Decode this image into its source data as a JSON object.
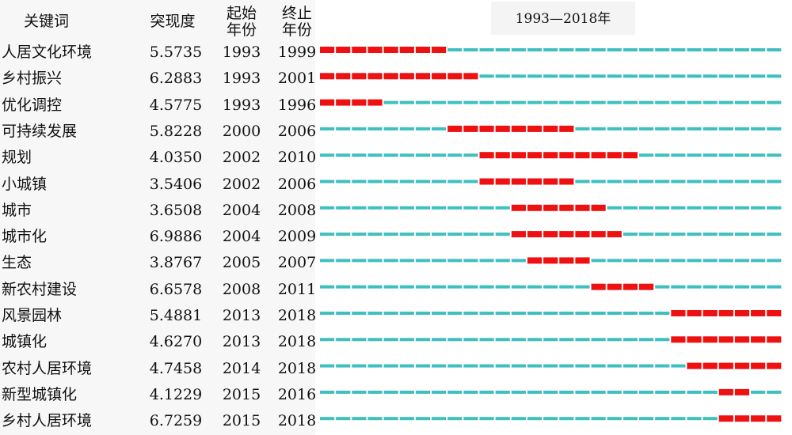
{
  "chart_data": {
    "type": "table",
    "title": "1993—2018年",
    "columns": [
      "关键词",
      "突现度",
      "起始年份",
      "终止年份"
    ],
    "column_header_lines": {
      "begin": [
        "起始",
        "年份"
      ],
      "end": [
        "终止",
        "年份"
      ]
    },
    "range": [
      1993,
      2018
    ],
    "rows": [
      {
        "keyword": "人居文化环境",
        "strength": "5.5735",
        "begin": 1993,
        "end": 1999
      },
      {
        "keyword": "乡村振兴",
        "strength": "6.2883",
        "begin": 1993,
        "end": 2001
      },
      {
        "keyword": "优化调控",
        "strength": "4.5775",
        "begin": 1993,
        "end": 1996
      },
      {
        "keyword": "可持续发展",
        "strength": "5.8228",
        "begin": 2000,
        "end": 2006
      },
      {
        "keyword": "规划",
        "strength": "4.0350",
        "begin": 2002,
        "end": 2010
      },
      {
        "keyword": "小城镇",
        "strength": "3.5406",
        "begin": 2002,
        "end": 2006
      },
      {
        "keyword": "城市",
        "strength": "3.6508",
        "begin": 2004,
        "end": 2008
      },
      {
        "keyword": "城市化",
        "strength": "6.9886",
        "begin": 2004,
        "end": 2009
      },
      {
        "keyword": "生态",
        "strength": "3.8767",
        "begin": 2005,
        "end": 2007
      },
      {
        "keyword": "新农村建设",
        "strength": "6.6578",
        "begin": 2008,
        "end": 2011
      },
      {
        "keyword": "风景园林",
        "strength": "5.4881",
        "begin": 2013,
        "end": 2018
      },
      {
        "keyword": "城镇化",
        "strength": "4.6270",
        "begin": 2013,
        "end": 2018
      },
      {
        "keyword": "农村人居环境",
        "strength": "4.7458",
        "begin": 2014,
        "end": 2018
      },
      {
        "keyword": "新型城镇化",
        "strength": "4.1229",
        "begin": 2015,
        "end": 2016
      },
      {
        "keyword": "乡村人居环境",
        "strength": "6.7259",
        "begin": 2015,
        "end": 2018
      }
    ],
    "colors": {
      "burst": "#ee1111",
      "base": "#3fbfbf"
    }
  }
}
